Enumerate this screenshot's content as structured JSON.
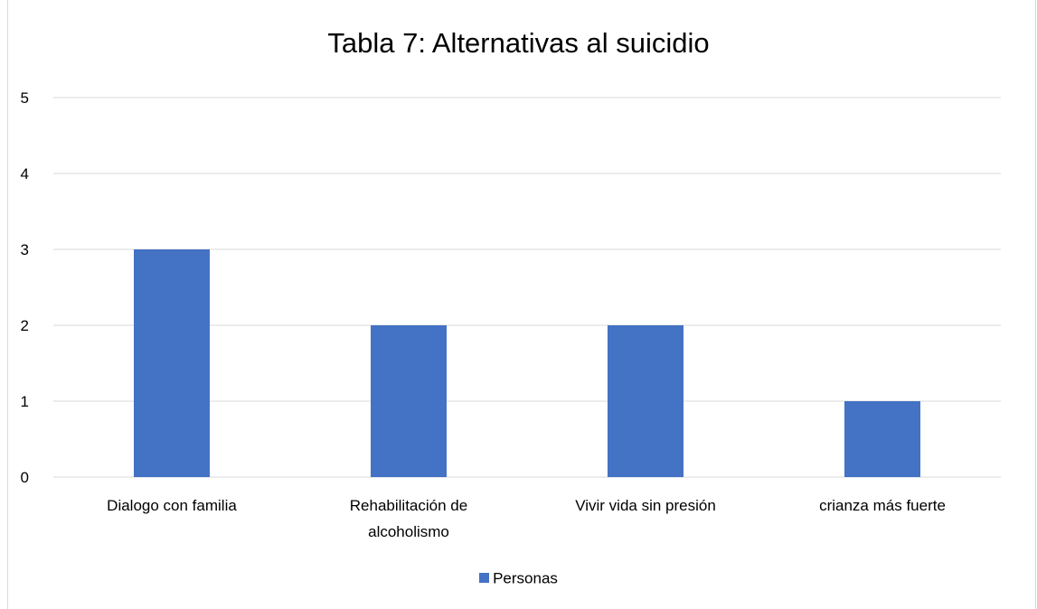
{
  "chart_data": {
    "type": "bar",
    "title": "Tabla 7: Alternativas al suicidio",
    "categories": [
      [
        "Dialogo con familia"
      ],
      [
        "Rehabilitación de",
        "alcoholismo"
      ],
      [
        "Vivir vida sin presión"
      ],
      [
        "crianza más fuerte"
      ]
    ],
    "series": [
      {
        "name": "Personas",
        "values": [
          3,
          2,
          2,
          1
        ],
        "color": "#4472c4"
      }
    ],
    "ylim": [
      0,
      5
    ],
    "yticks": [
      "0",
      "1",
      "2",
      "3",
      "4",
      "5"
    ],
    "grid": true,
    "legend": "bottom",
    "gridline_color": "#d9d9d9"
  }
}
